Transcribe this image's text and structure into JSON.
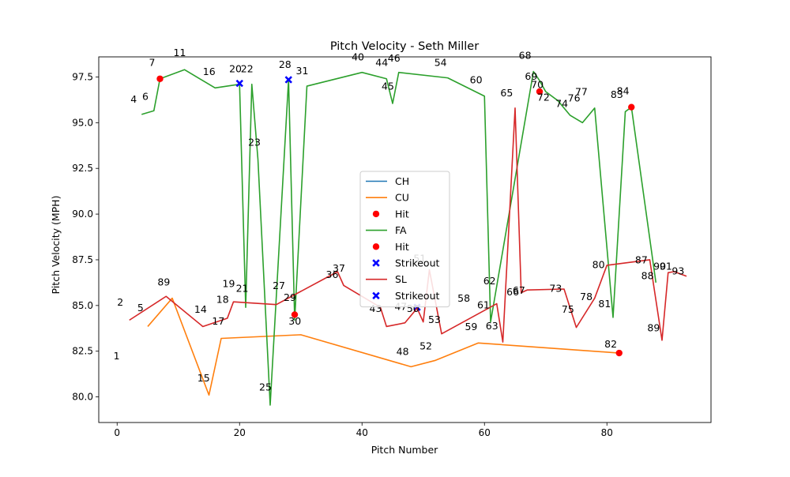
{
  "chart_data": {
    "type": "line",
    "title": "Pitch Velocity - Seth Miller",
    "xlabel": "Pitch Number",
    "ylabel": "Pitch Velocity (MPH)",
    "xlim": [
      -3,
      97
    ],
    "ylim": [
      78.6,
      98.6
    ],
    "xticks": [
      0,
      20,
      40,
      60,
      80
    ],
    "yticks": [
      80.0,
      82.5,
      85.0,
      87.5,
      90.0,
      92.5,
      95.0,
      97.5
    ],
    "legend_position": "center",
    "series": [
      {
        "name": "CH",
        "kind": "line",
        "color": "#1f77b4",
        "points": []
      },
      {
        "name": "CU",
        "kind": "line",
        "color": "#ff7f0e",
        "points": [
          [
            5,
            83.85
          ],
          [
            9,
            85.4
          ],
          [
            15,
            80.1
          ],
          [
            17,
            83.2
          ],
          [
            30,
            83.4
          ],
          [
            48,
            81.65
          ],
          [
            52,
            82.0
          ],
          [
            59,
            82.95
          ],
          [
            82,
            82.4
          ]
        ]
      },
      {
        "name": "Hit",
        "kind": "scatter",
        "marker": "circle",
        "color": "#ff0000",
        "points": []
      },
      {
        "name": "FA",
        "kind": "line",
        "color": "#2ca02c",
        "points": [
          [
            4,
            95.45
          ],
          [
            6,
            95.65
          ],
          [
            7,
            97.4
          ],
          [
            11,
            97.9
          ],
          [
            16,
            96.9
          ],
          [
            20,
            97.1
          ],
          [
            21,
            84.9
          ],
          [
            22,
            97.1
          ],
          [
            23,
            93.0
          ],
          [
            25,
            79.55
          ],
          [
            28,
            97.35
          ],
          [
            29,
            84.2
          ],
          [
            31,
            97.0
          ],
          [
            40,
            97.75
          ],
          [
            44,
            97.4
          ],
          [
            45,
            96.05
          ],
          [
            46,
            97.75
          ],
          [
            54,
            97.45
          ],
          [
            60,
            96.45
          ],
          [
            61,
            84.1
          ],
          [
            68,
            97.8
          ],
          [
            69,
            97.3
          ],
          [
            70,
            96.7
          ],
          [
            72,
            96.2
          ],
          [
            74,
            95.4
          ],
          [
            76,
            95.0
          ],
          [
            77,
            95.4
          ],
          [
            78,
            95.8
          ],
          [
            81,
            84.35
          ],
          [
            83,
            95.6
          ],
          [
            84,
            95.85
          ],
          [
            88,
            86.25
          ]
        ]
      },
      {
        "name": "Hit",
        "kind": "scatter",
        "marker": "circle",
        "color": "#ff0000",
        "points": [
          [
            7,
            97.4
          ],
          [
            29,
            84.5
          ],
          [
            69,
            96.7
          ],
          [
            82,
            82.4
          ],
          [
            84,
            95.85
          ]
        ]
      },
      {
        "name": "Strikeout",
        "kind": "scatter",
        "marker": "x",
        "color": "#0000ff",
        "points": [
          [
            20,
            97.15
          ],
          [
            28,
            97.35
          ],
          [
            49,
            84.9
          ]
        ]
      },
      {
        "name": "SL",
        "kind": "line",
        "color": "#d62728",
        "points": [
          [
            2,
            84.2
          ],
          [
            8,
            85.5
          ],
          [
            14,
            83.85
          ],
          [
            18,
            84.3
          ],
          [
            19,
            85.2
          ],
          [
            26,
            85.05
          ],
          [
            36,
            86.85
          ],
          [
            37,
            86.1
          ],
          [
            43,
            84.9
          ],
          [
            44,
            83.85
          ],
          [
            47,
            84.05
          ],
          [
            49,
            84.85
          ],
          [
            50,
            84.1
          ],
          [
            51,
            86.95
          ],
          [
            53,
            83.45
          ],
          [
            62,
            85.1
          ],
          [
            63,
            83.0
          ],
          [
            65,
            95.8
          ],
          [
            66,
            85.7
          ],
          [
            67,
            85.85
          ],
          [
            73,
            85.9
          ],
          [
            75,
            83.8
          ],
          [
            78,
            85.4
          ],
          [
            80,
            87.2
          ],
          [
            87,
            87.5
          ],
          [
            89,
            83.1
          ],
          [
            90,
            86.8
          ],
          [
            91,
            86.85
          ],
          [
            93,
            86.6
          ]
        ]
      },
      {
        "name": "Strikeout",
        "kind": "scatter",
        "marker": "x",
        "color": "#0000ff",
        "points": []
      }
    ],
    "annotations": [
      {
        "text": "1",
        "x": -0.6,
        "y": 82.05
      },
      {
        "text": "2",
        "x": 0.0,
        "y": 85.0
      },
      {
        "text": "4",
        "x": 2.2,
        "y": 96.1
      },
      {
        "text": "5",
        "x": 3.3,
        "y": 84.7
      },
      {
        "text": "6",
        "x": 4.1,
        "y": 96.25
      },
      {
        "text": "7",
        "x": 5.2,
        "y": 98.1
      },
      {
        "text": "89",
        "x": 6.6,
        "y": 86.1
      },
      {
        "text": "11",
        "x": 9.2,
        "y": 98.65
      },
      {
        "text": "14",
        "x": 12.6,
        "y": 84.6
      },
      {
        "text": "15",
        "x": 13.1,
        "y": 80.85
      },
      {
        "text": "16",
        "x": 14.0,
        "y": 97.6
      },
      {
        "text": "17",
        "x": 15.5,
        "y": 83.95
      },
      {
        "text": "18",
        "x": 16.2,
        "y": 85.15
      },
      {
        "text": "19",
        "x": 17.2,
        "y": 86.0
      },
      {
        "text": "20",
        "x": 18.3,
        "y": 97.75
      },
      {
        "text": "21",
        "x": 19.4,
        "y": 85.75
      },
      {
        "text": "22",
        "x": 20.2,
        "y": 97.75
      },
      {
        "text": "23",
        "x": 21.4,
        "y": 93.75
      },
      {
        "text": "25",
        "x": 23.2,
        "y": 80.35
      },
      {
        "text": "27",
        "x": 25.4,
        "y": 85.9
      },
      {
        "text": "28",
        "x": 26.4,
        "y": 98.0
      },
      {
        "text": "29",
        "x": 27.2,
        "y": 85.25
      },
      {
        "text": "30",
        "x": 28.0,
        "y": 83.95
      },
      {
        "text": "31",
        "x": 29.2,
        "y": 97.65
      },
      {
        "text": "36",
        "x": 34.1,
        "y": 86.5
      },
      {
        "text": "37",
        "x": 35.2,
        "y": 86.85
      },
      {
        "text": "40",
        "x": 38.3,
        "y": 98.4
      },
      {
        "text": "43",
        "x": 41.2,
        "y": 84.65
      },
      {
        "text": "44",
        "x": 42.2,
        "y": 98.1
      },
      {
        "text": "45",
        "x": 43.2,
        "y": 96.8
      },
      {
        "text": "46",
        "x": 44.2,
        "y": 98.35
      },
      {
        "text": "47",
        "x": 45.3,
        "y": 84.75
      },
      {
        "text": "48",
        "x": 45.6,
        "y": 82.3
      },
      {
        "text": "50",
        "x": 47.3,
        "y": 84.65
      },
      {
        "text": "51",
        "x": 48.4,
        "y": 87.4
      },
      {
        "text": "52",
        "x": 49.4,
        "y": 82.6
      },
      {
        "text": "53",
        "x": 50.8,
        "y": 84.05
      },
      {
        "text": "54",
        "x": 51.8,
        "y": 98.1
      },
      {
        "text": "58",
        "x": 55.6,
        "y": 85.2
      },
      {
        "text": "59",
        "x": 56.8,
        "y": 83.65
      },
      {
        "text": "60",
        "x": 57.6,
        "y": 97.15
      },
      {
        "text": "61",
        "x": 58.8,
        "y": 84.85
      },
      {
        "text": "62",
        "x": 59.8,
        "y": 86.15
      },
      {
        "text": "63",
        "x": 60.2,
        "y": 83.7
      },
      {
        "text": "65",
        "x": 62.6,
        "y": 96.45
      },
      {
        "text": "66",
        "x": 63.6,
        "y": 85.55
      },
      {
        "text": "67",
        "x": 64.6,
        "y": 85.65
      },
      {
        "text": "68",
        "x": 65.6,
        "y": 98.5
      },
      {
        "text": "69",
        "x": 66.6,
        "y": 97.35
      },
      {
        "text": "70",
        "x": 67.6,
        "y": 96.9
      },
      {
        "text": "72",
        "x": 68.6,
        "y": 96.2
      },
      {
        "text": "73",
        "x": 70.6,
        "y": 85.75
      },
      {
        "text": "74",
        "x": 71.6,
        "y": 95.85
      },
      {
        "text": "75",
        "x": 72.6,
        "y": 84.6
      },
      {
        "text": "76",
        "x": 73.6,
        "y": 96.15
      },
      {
        "text": "77",
        "x": 74.8,
        "y": 96.5
      },
      {
        "text": "78",
        "x": 75.6,
        "y": 85.3
      },
      {
        "text": "80",
        "x": 77.6,
        "y": 87.05
      },
      {
        "text": "81",
        "x": 78.6,
        "y": 84.9
      },
      {
        "text": "82",
        "x": 79.6,
        "y": 82.7
      },
      {
        "text": "83",
        "x": 80.6,
        "y": 96.35
      },
      {
        "text": "84",
        "x": 81.6,
        "y": 96.55
      },
      {
        "text": "87",
        "x": 84.6,
        "y": 87.3
      },
      {
        "text": "88",
        "x": 85.6,
        "y": 86.45
      },
      {
        "text": "89",
        "x": 86.6,
        "y": 83.6
      },
      {
        "text": "90",
        "x": 87.6,
        "y": 86.95
      },
      {
        "text": "91",
        "x": 88.6,
        "y": 86.95
      },
      {
        "text": "93",
        "x": 90.6,
        "y": 86.7
      }
    ]
  }
}
